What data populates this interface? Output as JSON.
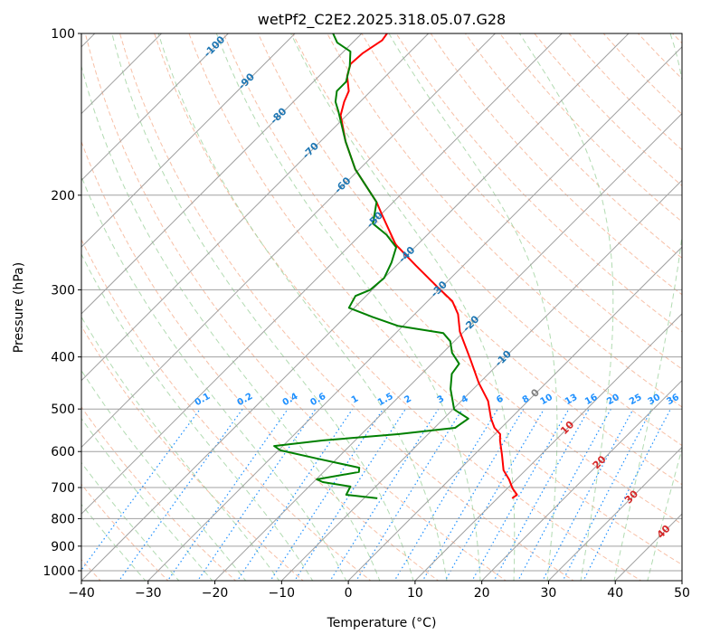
{
  "chart_data": {
    "type": "line",
    "subtype": "skew-t log-p",
    "title": "wetPf2_C2E2.2025.318.05.07.G28",
    "xlabel": "Temperature (°C)",
    "ylabel": "Pressure (hPa)",
    "xlim": [
      -40,
      50
    ],
    "ylim": [
      1050,
      100
    ],
    "xticks": [
      -40,
      -30,
      -20,
      -10,
      0,
      10,
      20,
      30,
      40,
      50
    ],
    "yticks": [
      100,
      200,
      300,
      400,
      500,
      600,
      700,
      800,
      900,
      1000
    ],
    "grid": true,
    "series": [
      {
        "name": "Temperature",
        "color": "#ff0000",
        "points": [
          [
            100,
            -76.2
          ],
          [
            103,
            -75.9
          ],
          [
            109,
            -76.9
          ],
          [
            114,
            -77.1
          ],
          [
            120,
            -75.8
          ],
          [
            128,
            -73.3
          ],
          [
            134,
            -72.4
          ],
          [
            142,
            -70.9
          ],
          [
            159,
            -66.2
          ],
          [
            179,
            -60.6
          ],
          [
            206,
            -52.5
          ],
          [
            217,
            -49.9
          ],
          [
            247,
            -43.3
          ],
          [
            270,
            -37.2
          ],
          [
            300,
            -29.8
          ],
          [
            315,
            -26.3
          ],
          [
            333,
            -23.5
          ],
          [
            359,
            -20.6
          ],
          [
            404,
            -14.9
          ],
          [
            447,
            -10.1
          ],
          [
            483,
            -6.0
          ],
          [
            521,
            -2.9
          ],
          [
            542,
            -1.0
          ],
          [
            557,
            0.8
          ],
          [
            572,
            1.7
          ],
          [
            609,
            4.2
          ],
          [
            650,
            6.7
          ],
          [
            676,
            8.9
          ],
          [
            703,
            10.8
          ],
          [
            722,
            12.4
          ],
          [
            733,
            12.2
          ]
        ]
      },
      {
        "name": "Dewpoint",
        "color": "#008000",
        "points": [
          [
            100,
            -84.3
          ],
          [
            104,
            -82.3
          ],
          [
            108,
            -79.0
          ],
          [
            115,
            -76.9
          ],
          [
            123,
            -75.1
          ],
          [
            128,
            -75.1
          ],
          [
            134,
            -73.7
          ],
          [
            140,
            -71.7
          ],
          [
            159,
            -66.2
          ],
          [
            179,
            -60.6
          ],
          [
            206,
            -52.5
          ],
          [
            226,
            -49.8
          ],
          [
            237,
            -46.1
          ],
          [
            250,
            -42.8
          ],
          [
            267,
            -41.2
          ],
          [
            285,
            -40.0
          ],
          [
            300,
            -40.3
          ],
          [
            308,
            -41.6
          ],
          [
            324,
            -40.8
          ],
          [
            337,
            -35.9
          ],
          [
            350,
            -30.8
          ],
          [
            361,
            -22.9
          ],
          [
            374,
            -20.6
          ],
          [
            393,
            -18.6
          ],
          [
            412,
            -15.9
          ],
          [
            430,
            -15.5
          ],
          [
            459,
            -13.4
          ],
          [
            501,
            -9.8
          ],
          [
            521,
            -6.3
          ],
          [
            542,
            -6.9
          ],
          [
            557,
            -14.5
          ],
          [
            572,
            -24.8
          ],
          [
            586,
            -31.3
          ],
          [
            597,
            -29.7
          ],
          [
            618,
            -23.1
          ],
          [
            643,
            -15.3
          ],
          [
            655,
            -14.7
          ],
          [
            676,
            -19.9
          ],
          [
            684,
            -18.6
          ],
          [
            697,
            -13.8
          ],
          [
            722,
            -13.2
          ],
          [
            733,
            -8.0
          ]
        ]
      }
    ],
    "isotherm_labels": [
      "-100",
      "-90",
      "-80",
      "-70",
      "-60",
      "-50",
      "-40",
      "-30",
      "-20",
      "-10",
      "0",
      "10",
      "20",
      "30",
      "40"
    ],
    "mixing_ratio_labels": [
      "0.1",
      "0.2",
      "0.4",
      "0.6",
      "1",
      "1.5",
      "2",
      "3",
      "4",
      "6",
      "8",
      "10",
      "13",
      "16",
      "20",
      "25",
      "30",
      "36"
    ],
    "colors": {
      "isotherm": "#a0a0a0",
      "dry_adiabat": "#f4a582",
      "moist_adiabat": "#9fd29f",
      "mixing_ratio": "#1e90ff",
      "label_cold": "#1f77b4",
      "label_zero": "#808080",
      "label_warm": "#d62728"
    }
  }
}
